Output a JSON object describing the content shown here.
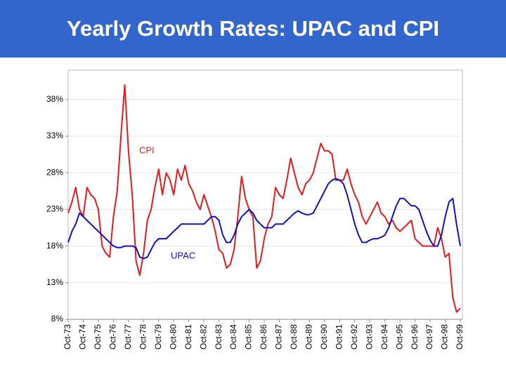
{
  "chart_data": {
    "type": "line",
    "title": "Yearly Growth Rates: UPAC and CPI",
    "x": [
      "Oct-73",
      "Jan-74",
      "Apr-74",
      "Jul-74",
      "Oct-74",
      "Jan-75",
      "Apr-75",
      "Jul-75",
      "Oct-75",
      "Jan-76",
      "Apr-76",
      "Jul-76",
      "Oct-76",
      "Jan-77",
      "Apr-77",
      "Jul-77",
      "Oct-77",
      "Jan-78",
      "Apr-78",
      "Jul-78",
      "Oct-78",
      "Jan-79",
      "Apr-79",
      "Jul-79",
      "Oct-79",
      "Jan-80",
      "Apr-80",
      "Jul-80",
      "Oct-80",
      "Jan-81",
      "Apr-81",
      "Jul-81",
      "Oct-81",
      "Jan-82",
      "Apr-82",
      "Jul-82",
      "Oct-82",
      "Jan-83",
      "Apr-83",
      "Jul-83",
      "Oct-83",
      "Jan-84",
      "Apr-84",
      "Jul-84",
      "Oct-84",
      "Jan-85",
      "Apr-85",
      "Jul-85",
      "Oct-85",
      "Jan-86",
      "Apr-86",
      "Jul-86",
      "Oct-86",
      "Jan-87",
      "Apr-87",
      "Jul-87",
      "Oct-87",
      "Jan-88",
      "Apr-88",
      "Jul-88",
      "Oct-88",
      "Jan-89",
      "Apr-89",
      "Jul-89",
      "Oct-89",
      "Jan-90",
      "Apr-90",
      "Jul-90",
      "Oct-90",
      "Jan-91",
      "Apr-91",
      "Jul-91",
      "Oct-91",
      "Jan-92",
      "Apr-92",
      "Jul-92",
      "Oct-92",
      "Jan-93",
      "Apr-93",
      "Jul-93",
      "Oct-93",
      "Jan-94",
      "Apr-94",
      "Jul-94",
      "Oct-94",
      "Jan-95",
      "Apr-95",
      "Jul-95",
      "Oct-95",
      "Jan-96",
      "Apr-96",
      "Jul-96",
      "Oct-96",
      "Jan-97",
      "Apr-97",
      "Jul-97",
      "Oct-97",
      "Jan-98",
      "Apr-98",
      "Jul-98",
      "Oct-98",
      "Jan-99",
      "Apr-99",
      "Jul-99",
      "Oct-99"
    ],
    "series": [
      {
        "name": "CPI",
        "color": "#e41a1c",
        "values": [
          22.5,
          24,
          26,
          23,
          22,
          26,
          25,
          24.5,
          23,
          18,
          17,
          16.5,
          22,
          25.5,
          33,
          40,
          31,
          25,
          16,
          14,
          17,
          21.5,
          23,
          26,
          28.5,
          25,
          28,
          27,
          25,
          28.5,
          27,
          29,
          26.5,
          25.5,
          24,
          23,
          25,
          23.5,
          22,
          20,
          17.5,
          17,
          15,
          15.5,
          17.5,
          22,
          27.5,
          24.5,
          23,
          22,
          15,
          16,
          19,
          21,
          22,
          26,
          25,
          24.5,
          27,
          30,
          28,
          26,
          25,
          26.5,
          27,
          28,
          30,
          32,
          31,
          31,
          30.5,
          27,
          27,
          27,
          28.5,
          26.5,
          25,
          24,
          22,
          21,
          22,
          23,
          24,
          22.5,
          22,
          21,
          21.5,
          20.5,
          20,
          20.5,
          21,
          21.5,
          19,
          18.5,
          18,
          18,
          18,
          18,
          20.5,
          19,
          16.5,
          17,
          11,
          9,
          9.5
        ]
      },
      {
        "name": "UPAC",
        "color": "#1010c8",
        "values": [
          18.5,
          20,
          21,
          22.5,
          22,
          21.5,
          21,
          20.5,
          20,
          19.5,
          19,
          18.5,
          18,
          17.8,
          17.8,
          18,
          18,
          18,
          17.8,
          16.5,
          16.3,
          16.5,
          17.5,
          18.5,
          19,
          19,
          19,
          19.5,
          20,
          20.5,
          21,
          21,
          21,
          21,
          21,
          21,
          21,
          21.5,
          22,
          22,
          21.5,
          19.5,
          18.5,
          18.5,
          19.5,
          21,
          22,
          22.5,
          23,
          22.5,
          21.5,
          21,
          20.5,
          20.5,
          20.5,
          21,
          21,
          21,
          21.5,
          22,
          22.5,
          22.8,
          22.5,
          22.3,
          22.3,
          22.5,
          23.5,
          24.5,
          25.5,
          26.5,
          27,
          27.2,
          27,
          26.5,
          25,
          23,
          21,
          19.5,
          18.5,
          18.5,
          18.8,
          19,
          19,
          19.2,
          19.5,
          20.5,
          22,
          23.5,
          24.5,
          24.5,
          24,
          23.5,
          23.5,
          23,
          21.5,
          20,
          18.8,
          18,
          18,
          19.5,
          22,
          24,
          24.5,
          21,
          18
        ]
      }
    ],
    "xticks": [
      "Oct-73",
      "Oct-74",
      "Oct-75",
      "Oct-76",
      "Oct-77",
      "Oct-78",
      "Oct-79",
      "Oct-80",
      "Oct-81",
      "Oct-82",
      "Oct-83",
      "Oct-84",
      "Oct-85",
      "Oct-86",
      "Oct-87",
      "Oct-88",
      "Oct-89",
      "Oct-90",
      "Oct-91",
      "Oct-92",
      "Oct-93",
      "Oct-94",
      "Oct-95",
      "Oct-96",
      "Oct-97",
      "Oct-98",
      "Oct-99"
    ],
    "ylim": [
      8,
      42
    ],
    "yticks": [
      {
        "value": 8,
        "label": "8%"
      },
      {
        "value": 13,
        "label": "13%"
      },
      {
        "value": 18,
        "label": "18%"
      },
      {
        "value": 23,
        "label": "23%"
      },
      {
        "value": 28,
        "label": "28%"
      },
      {
        "value": 33,
        "label": "33%"
      },
      {
        "value": 38,
        "label": "38%"
      }
    ],
    "grid": true
  }
}
